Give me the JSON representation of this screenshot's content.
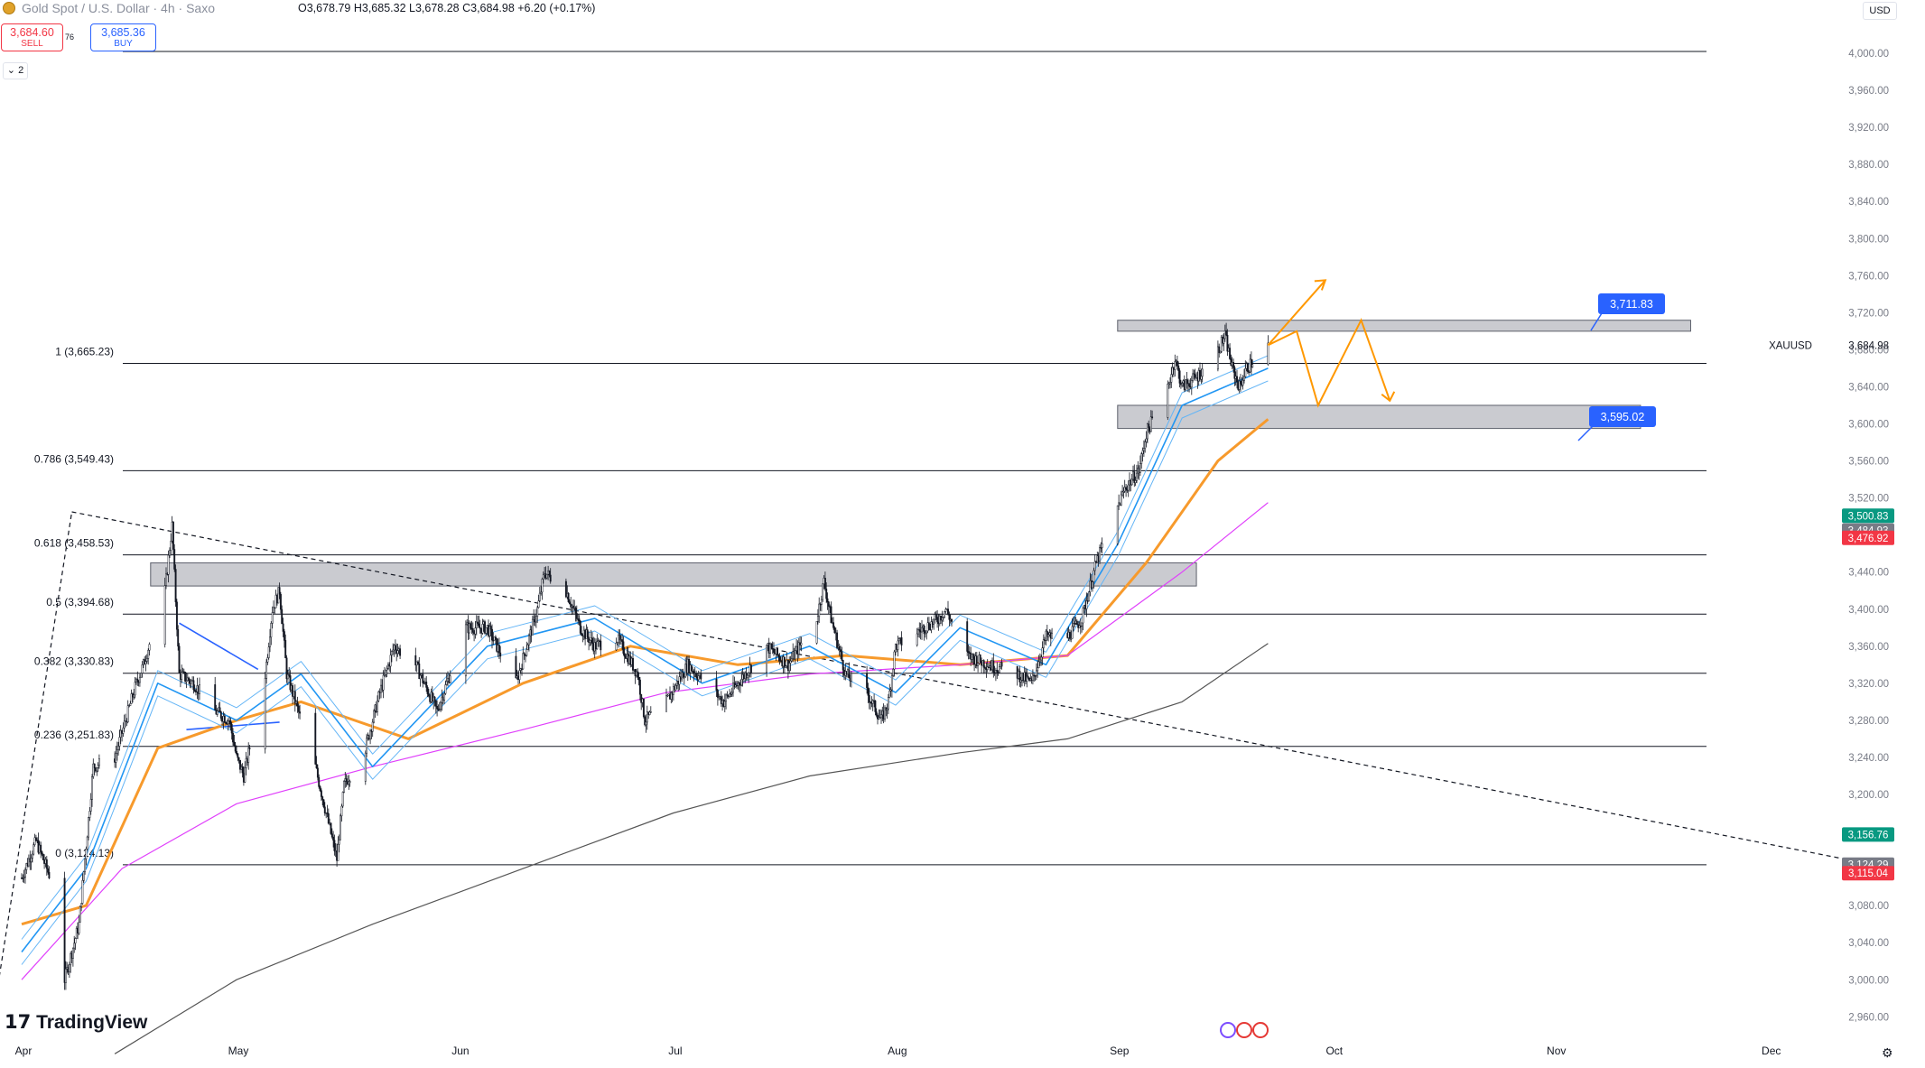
{
  "header": {
    "symbol": "Gold Spot / U.S. Dollar · 4h · Saxo",
    "ohlc": "O3,678.79  H3,685.32  L3,678.28  C3,684.98  +6.20 (+0.17%)",
    "sell_price": "3,684.60",
    "sell_label": "SELL",
    "spread": "76",
    "buy_price": "3,685.36",
    "buy_label": "BUY",
    "indicators_count": "2",
    "currency": "USD"
  },
  "branding": {
    "logo_text": "TradingView"
  },
  "chart_data": {
    "type": "candlestick",
    "title": "Gold Spot / U.S. Dollar",
    "instrument": "XAUUSD",
    "timeframe": "4h",
    "x_labels": [
      "Apr",
      "May",
      "Jun",
      "Jul",
      "Aug",
      "Sep",
      "Oct",
      "Nov",
      "Dec"
    ],
    "x_dates": [
      "2025-04-01",
      "2025-05-01",
      "2025-06-01",
      "2025-07-01",
      "2025-08-01",
      "2025-09-01",
      "2025-10-01",
      "2025-11-01",
      "2025-12-01"
    ],
    "y_ticks": [
      "4,000.00",
      "3,960.00",
      "3,920.00",
      "3,880.00",
      "3,840.00",
      "3,800.00",
      "3,760.00",
      "3,720.00",
      "3,680.00",
      "3,640.00",
      "3,600.00",
      "3,560.00",
      "3,520.00",
      "3,480.00",
      "3,440.00",
      "3,400.00",
      "3,360.00",
      "3,320.00",
      "3,280.00",
      "3,240.00",
      "3,200.00",
      "3,160.00",
      "3,120.00",
      "3,080.00",
      "3,040.00",
      "3,000.00",
      "2,960.00"
    ],
    "y_tick_values": [
      4000,
      3960,
      3920,
      3880,
      3840,
      3800,
      3760,
      3720,
      3680,
      3640,
      3600,
      3560,
      3520,
      3480,
      3440,
      3400,
      3360,
      3320,
      3280,
      3240,
      3200,
      3160,
      3120,
      3080,
      3040,
      3000,
      2960
    ],
    "ylim": [
      2940,
      4020
    ],
    "price_path": [
      [
        "2025-04-01",
        3110
      ],
      [
        "2025-04-03",
        3150
      ],
      [
        "2025-04-06",
        3090
      ],
      [
        "2025-04-07",
        3000
      ],
      [
        "2025-04-09",
        3060
      ],
      [
        "2025-04-11",
        3230
      ],
      [
        "2025-04-14",
        3240
      ],
      [
        "2025-04-17",
        3320
      ],
      [
        "2025-04-18",
        3340
      ],
      [
        "2025-04-21",
        3420
      ],
      [
        "2025-04-22",
        3490
      ],
      [
        "2025-04-23",
        3330
      ],
      [
        "2025-04-25",
        3320
      ],
      [
        "2025-04-28",
        3290
      ],
      [
        "2025-04-30",
        3280
      ],
      [
        "2025-05-01",
        3240
      ],
      [
        "2025-05-02",
        3220
      ],
      [
        "2025-05-05",
        3330
      ],
      [
        "2025-05-06",
        3400
      ],
      [
        "2025-05-07",
        3420
      ],
      [
        "2025-05-08",
        3330
      ],
      [
        "2025-05-12",
        3230
      ],
      [
        "2025-05-15",
        3130
      ],
      [
        "2025-05-16",
        3210
      ],
      [
        "2025-05-19",
        3250
      ],
      [
        "2025-05-21",
        3310
      ],
      [
        "2025-05-23",
        3360
      ],
      [
        "2025-05-26",
        3340
      ],
      [
        "2025-05-29",
        3290
      ],
      [
        "2025-06-02",
        3380
      ],
      [
        "2025-06-05",
        3380
      ],
      [
        "2025-06-09",
        3320
      ],
      [
        "2025-06-12",
        3400
      ],
      [
        "2025-06-13",
        3440
      ],
      [
        "2025-06-16",
        3420
      ],
      [
        "2025-06-18",
        3380
      ],
      [
        "2025-06-20",
        3360
      ],
      [
        "2025-06-23",
        3370
      ],
      [
        "2025-06-26",
        3330
      ],
      [
        "2025-06-27",
        3280
      ],
      [
        "2025-06-30",
        3300
      ],
      [
        "2025-07-03",
        3340
      ],
      [
        "2025-07-08",
        3300
      ],
      [
        "2025-07-14",
        3360
      ],
      [
        "2025-07-17",
        3340
      ],
      [
        "2025-07-21",
        3390
      ],
      [
        "2025-07-22",
        3430
      ],
      [
        "2025-07-23",
        3390
      ],
      [
        "2025-07-25",
        3330
      ],
      [
        "2025-07-28",
        3310
      ],
      [
        "2025-07-30",
        3280
      ],
      [
        "2025-07-31",
        3300
      ],
      [
        "2025-08-01",
        3360
      ],
      [
        "2025-08-05",
        3380
      ],
      [
        "2025-08-07",
        3390
      ],
      [
        "2025-08-08",
        3400
      ],
      [
        "2025-08-11",
        3350
      ],
      [
        "2025-08-14",
        3340
      ],
      [
        "2025-08-18",
        3330
      ],
      [
        "2025-08-20",
        3320
      ],
      [
        "2025-08-22",
        3370
      ],
      [
        "2025-08-25",
        3370
      ],
      [
        "2025-08-27",
        3390
      ],
      [
        "2025-08-29",
        3450
      ],
      [
        "2025-09-02",
        3530
      ],
      [
        "2025-09-04",
        3550
      ],
      [
        "2025-09-05",
        3590
      ],
      [
        "2025-09-08",
        3640
      ],
      [
        "2025-09-09",
        3670
      ],
      [
        "2025-09-10",
        3640
      ],
      [
        "2025-09-12",
        3650
      ],
      [
        "2025-09-15",
        3680
      ],
      [
        "2025-09-16",
        3695
      ],
      [
        "2025-09-17",
        3660
      ],
      [
        "2025-09-18",
        3640
      ],
      [
        "2025-09-19",
        3660
      ],
      [
        "2025-09-22",
        3684.98
      ]
    ],
    "moving_averages": [
      {
        "color": "#f79a2c",
        "points": [
          [
            "2025-04-01",
            3060
          ],
          [
            "2025-04-10",
            3080
          ],
          [
            "2025-04-20",
            3250
          ],
          [
            "2025-05-01",
            3280
          ],
          [
            "2025-05-10",
            3300
          ],
          [
            "2025-05-25",
            3260
          ],
          [
            "2025-06-10",
            3320
          ],
          [
            "2025-06-25",
            3360
          ],
          [
            "2025-07-10",
            3340
          ],
          [
            "2025-07-25",
            3350
          ],
          [
            "2025-08-10",
            3340
          ],
          [
            "2025-08-25",
            3350
          ],
          [
            "2025-09-05",
            3450
          ],
          [
            "2025-09-15",
            3560
          ],
          [
            "2025-09-22",
            3605
          ]
        ]
      },
      {
        "color": "#e040fb",
        "points": [
          [
            "2025-04-01",
            3000
          ],
          [
            "2025-04-15",
            3120
          ],
          [
            "2025-05-01",
            3190
          ],
          [
            "2025-05-20",
            3230
          ],
          [
            "2025-06-10",
            3270
          ],
          [
            "2025-06-30",
            3310
          ],
          [
            "2025-07-20",
            3330
          ],
          [
            "2025-08-10",
            3340
          ],
          [
            "2025-08-25",
            3350
          ],
          [
            "2025-09-10",
            3440
          ],
          [
            "2025-09-22",
            3515
          ]
        ]
      },
      {
        "color": "#555555",
        "points": [
          [
            "2025-04-14",
            2920
          ],
          [
            "2025-05-01",
            3000
          ],
          [
            "2025-05-20",
            3060
          ],
          [
            "2025-06-10",
            3120
          ],
          [
            "2025-07-01",
            3180
          ],
          [
            "2025-07-20",
            3220
          ],
          [
            "2025-08-10",
            3245
          ],
          [
            "2025-08-25",
            3260
          ],
          [
            "2025-09-10",
            3300
          ],
          [
            "2025-09-22",
            3363
          ]
        ]
      },
      {
        "color": "#2196f3",
        "points": [
          [
            "2025-04-01",
            3030
          ],
          [
            "2025-04-10",
            3120
          ],
          [
            "2025-04-20",
            3320
          ],
          [
            "2025-05-01",
            3280
          ],
          [
            "2025-05-10",
            3330
          ],
          [
            "2025-05-20",
            3230
          ],
          [
            "2025-06-05",
            3360
          ],
          [
            "2025-06-20",
            3390
          ],
          [
            "2025-07-05",
            3320
          ],
          [
            "2025-07-20",
            3360
          ],
          [
            "2025-08-01",
            3310
          ],
          [
            "2025-08-10",
            3380
          ],
          [
            "2025-08-22",
            3340
          ],
          [
            "2025-09-01",
            3470
          ],
          [
            "2025-09-10",
            3620
          ],
          [
            "2025-09-22",
            3660
          ]
        ]
      }
    ],
    "fibonacci_levels": [
      {
        "label": "1 (3,665.23)",
        "value": 3665.23
      },
      {
        "label": "0.786 (3,549.43)",
        "value": 3549.43
      },
      {
        "label": "0.618 (3,458.53)",
        "value": 3458.53
      },
      {
        "label": "0.5 (3,394.68)",
        "value": 3394.68
      },
      {
        "label": "0.382 (3,330.83)",
        "value": 3330.83
      },
      {
        "label": "0.236 (3,251.83)",
        "value": 3251.83
      },
      {
        "label": "0 (3,124.13)",
        "value": 3124.13
      }
    ],
    "horizontal_lines": [
      {
        "value": 4002
      }
    ],
    "zones": [
      {
        "from_date": "2025-09-01",
        "to_date": "2025-11-20",
        "low": 3700,
        "high": 3711.83,
        "label": "3,711.83"
      },
      {
        "from_date": "2025-09-01",
        "to_date": "2025-11-13",
        "low": 3595.02,
        "high": 3620,
        "label": "3,595.02"
      },
      {
        "from_date": "2025-04-19",
        "to_date": "2025-09-12",
        "low": 3425,
        "high": 3450
      }
    ],
    "trendline_dashed": [
      [
        "2025-04-08",
        3505
      ],
      [
        "2025-12-15",
        3125
      ]
    ],
    "trendline_dashed_2": [
      [
        "2025-03-28",
        2960
      ],
      [
        "2025-04-08",
        3505
      ]
    ],
    "orange_projection": [
      [
        "2025-09-22",
        3685
      ],
      [
        "2025-09-30",
        3755
      ]
    ],
    "orange_zigzag": [
      [
        "2025-09-22",
        3685
      ],
      [
        "2025-09-26",
        3700
      ],
      [
        "2025-09-29",
        3620
      ],
      [
        "2025-10-05",
        3712
      ],
      [
        "2025-10-09",
        3625
      ]
    ],
    "blue_wedge": [
      [
        "2025-04-23",
        3385
      ],
      [
        "2025-05-04",
        3335
      ],
      [
        "2025-04-24",
        3270
      ],
      [
        "2025-05-07",
        3278
      ]
    ],
    "current_price": {
      "value": 3684.98,
      "label": "3,684.98",
      "instrument_label": "XAUUSD"
    },
    "price_badges": [
      {
        "label": "3,500.83",
        "value": 3500.83,
        "color": "#089981"
      },
      {
        "label": "3,484.93",
        "value": 3484.93,
        "color": "#787b86"
      },
      {
        "label": "3,476.92",
        "value": 3476.92,
        "color": "#f23645"
      },
      {
        "label": "3,156.76",
        "value": 3156.76,
        "color": "#089981"
      },
      {
        "label": "3,124.29",
        "value": 3124.29,
        "color": "#787b86"
      },
      {
        "label": "3,115.04",
        "value": 3115.04,
        "color": "#f23645"
      }
    ],
    "grid": false
  }
}
